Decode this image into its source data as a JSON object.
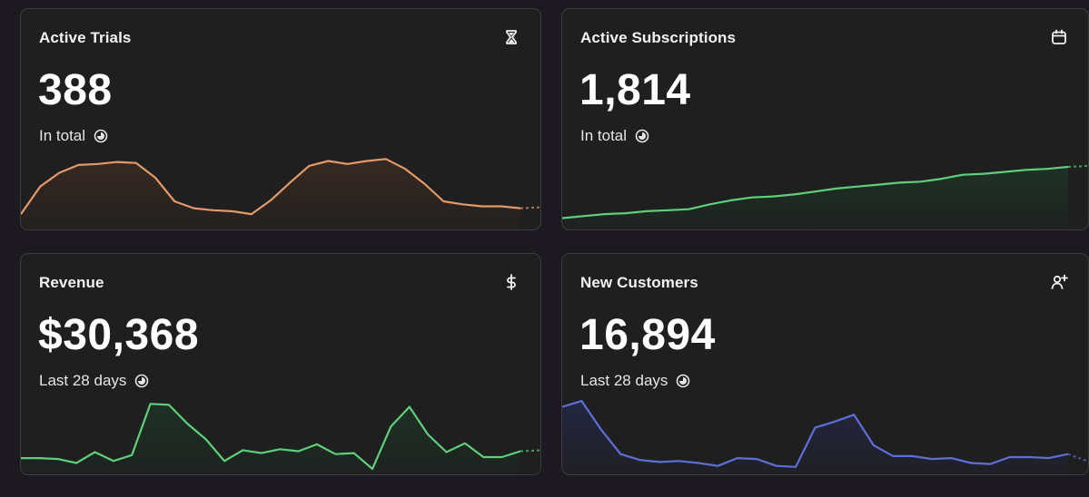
{
  "cards": [
    {
      "title": "Active Trials",
      "value": "388",
      "subtitle": "In total",
      "icon": "hourglass-icon",
      "color": "#e39a6a",
      "fill": "#3a2a22",
      "series": [
        10,
        38,
        52,
        60,
        61,
        63,
        62,
        47,
        23,
        16,
        14,
        13,
        10,
        24,
        42,
        59,
        64,
        61,
        64,
        66,
        56,
        41,
        23,
        20,
        18,
        18,
        16
      ]
    },
    {
      "title": "Active Subscriptions",
      "value": "1,814",
      "subtitle": "In total",
      "icon": "calendar-icon",
      "color": "#5fd07a",
      "fill": "#1d3325",
      "series": [
        6,
        8,
        10,
        11,
        13,
        14,
        15,
        20,
        24,
        27,
        28,
        30,
        33,
        36,
        38,
        40,
        42,
        43,
        46,
        50,
        51,
        53,
        55,
        56,
        58
      ]
    },
    {
      "title": "Revenue",
      "value": "$30,368",
      "subtitle": "Last 28 days",
      "icon": "dollar-icon",
      "color": "#5fd07a",
      "fill": "#1d3325",
      "series": [
        11,
        11,
        10,
        6,
        17,
        8,
        14,
        66,
        65,
        46,
        30,
        8,
        19,
        16,
        20,
        18,
        25,
        15,
        16,
        0,
        43,
        63,
        35,
        17,
        26,
        12,
        12,
        18
      ]
    },
    {
      "title": "New Customers",
      "value": "16,894",
      "subtitle": "Last 28 days",
      "icon": "add-user-icon",
      "color": "#5d6fd8",
      "fill": "#232744",
      "series": [
        63,
        69,
        40,
        15,
        9,
        7,
        8,
        6,
        3,
        11,
        10,
        3,
        2,
        42,
        48,
        55,
        24,
        13,
        13,
        10,
        11,
        6,
        5,
        12,
        12,
        11,
        15
      ]
    }
  ]
}
